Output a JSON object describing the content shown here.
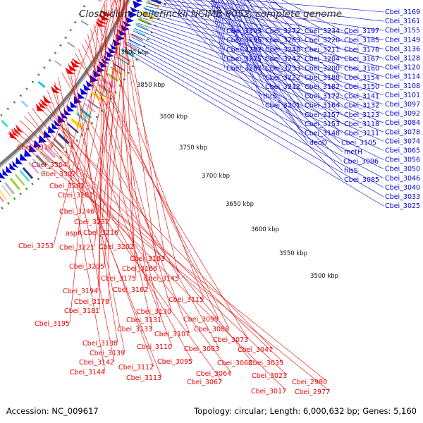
{
  "title": "Clostridium beijerinckii NCIMB 8052, complete genome",
  "footer": {
    "accession": "Accession: NC_009617",
    "info": "Topology: circular; Length: 6,000,632 bp; Genes: 5,160"
  },
  "colors": {
    "forward": "#ee0000",
    "reverse": "#0000dd",
    "backbone": "#777777",
    "ruler": "#228b22"
  },
  "ruler_ticks": [
    "3900 kbp",
    "3850 kbp",
    "3800 kbp",
    "3750 kbp",
    "3700 kbp",
    "3650 kbp",
    "3600 kbp",
    "3550 kbp",
    "3500 kbp"
  ],
  "blue_labels": [
    "Cbei_3303",
    "Cbei_3295",
    "Cbei_3282",
    "Cbei_3275",
    "Cbei_3267",
    "Cbei_3272",
    "Cbei_3263",
    "Cbei_3248",
    "Cbei_3242",
    "Cbei_3233",
    "Cbei_3222",
    "Cbei_3212",
    "thrS",
    "Cbei_3201",
    "Cbei_3234",
    "Cbei_3220",
    "Cbei_3211",
    "Cbei_3204",
    "Cbei_3200",
    "Cbei_3188",
    "Cbei_3182",
    "Cbei_3172",
    "Cbei_3164",
    "Cbei_3157",
    "Cbei_3153",
    "Cbei_3148",
    "deoD",
    "Cbei_3197",
    "Cbei_3185",
    "Cbei_3176",
    "Cbei_3167",
    "Cbei_3160",
    "Cbei_3154",
    "Cbei_3150",
    "Cbei_3141",
    "Cbei_3132",
    "Cbei_3123",
    "Cbei_3118",
    "Cbei_3111",
    "Cbei_3105",
    "metH",
    "Cbei_3096",
    "hisS",
    "Cbei_3085",
    "Cbei_3169",
    "Cbei_3161",
    "Cbei_3155",
    "Cbei_3149",
    "Cbei_3136",
    "Cbei_3128",
    "Cbei_3120",
    "Cbei_3114",
    "Cbei_3108",
    "Cbei_3101",
    "Cbei_3097",
    "Cbei_3092",
    "Cbei_3084",
    "Cbei_3078",
    "Cbei_3074",
    "Cbei_3065",
    "Cbei_3056",
    "Cbei_3050",
    "Cbei_3046",
    "Cbei_3040",
    "Cbei_3033",
    "Cbei_3025"
  ],
  "red_labels": [
    "Cbei_3319",
    "Cbei_3304",
    "Cbei_3302",
    "Cbei_3262",
    "Cbei_3261",
    "Cbei_3246",
    "Cbei_3232",
    "aspA",
    "Cbei_3216",
    "Cbei_3253",
    "Cbei_3221",
    "Cbei_3202",
    "Cbei_3205",
    "Cbei_3183",
    "Cbei_3166",
    "Cbei_3175",
    "Cbei_3145",
    "Cbei_3162",
    "Cbei_3194",
    "Cbei_3178",
    "Cbei_3181",
    "Cbei_3195",
    "Cbei_3115",
    "Cbei_3130",
    "Cbei_3131",
    "Cbei_3133",
    "Cbei_3099",
    "Cbei_3088",
    "Cbei_3107",
    "Cbei_3073",
    "Cbei_3138",
    "Cbei_3139",
    "Cbei_3110",
    "Cbei_3083",
    "Cbei_3142",
    "Cbei_3144",
    "Cbei_3112",
    "Cbei_3113",
    "Cbei_3095",
    "Cbei_3063",
    "Cbei_3047",
    "Cbei_3064",
    "Cbei_3067",
    "Cbei_3035",
    "Cbei_3023",
    "Cbei_3017",
    "Cbei_2980",
    "Cbei_2977"
  ]
}
